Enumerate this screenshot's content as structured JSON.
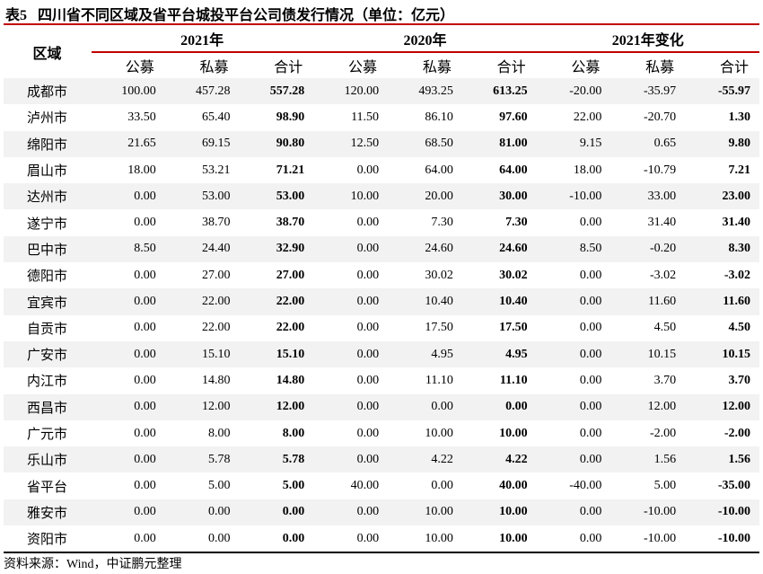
{
  "title": {
    "number": "表5",
    "text": "四川省不同区域及省平台城投平台公司债发行情况（单位：亿元）"
  },
  "header": {
    "region": "区域",
    "groups": [
      "2021年",
      "2020年",
      "2021年变化"
    ],
    "subcolumns": [
      "公募",
      "私募",
      "合计",
      "公募",
      "私募",
      "合计",
      "公募",
      "私募",
      "合计"
    ]
  },
  "rows": [
    {
      "name": "成都市",
      "values": [
        "100.00",
        "457.28",
        "557.28",
        "120.00",
        "493.25",
        "613.25",
        "-20.00",
        "-35.97",
        "-55.97"
      ]
    },
    {
      "name": "泸州市",
      "values": [
        "33.50",
        "65.40",
        "98.90",
        "11.50",
        "86.10",
        "97.60",
        "22.00",
        "-20.70",
        "1.30"
      ]
    },
    {
      "name": "绵阳市",
      "values": [
        "21.65",
        "69.15",
        "90.80",
        "12.50",
        "68.50",
        "81.00",
        "9.15",
        "0.65",
        "9.80"
      ]
    },
    {
      "name": "眉山市",
      "values": [
        "18.00",
        "53.21",
        "71.21",
        "0.00",
        "64.00",
        "64.00",
        "18.00",
        "-10.79",
        "7.21"
      ]
    },
    {
      "name": "达州市",
      "values": [
        "0.00",
        "53.00",
        "53.00",
        "10.00",
        "20.00",
        "30.00",
        "-10.00",
        "33.00",
        "23.00"
      ]
    },
    {
      "name": "遂宁市",
      "values": [
        "0.00",
        "38.70",
        "38.70",
        "0.00",
        "7.30",
        "7.30",
        "0.00",
        "31.40",
        "31.40"
      ]
    },
    {
      "name": "巴中市",
      "values": [
        "8.50",
        "24.40",
        "32.90",
        "0.00",
        "24.60",
        "24.60",
        "8.50",
        "-0.20",
        "8.30"
      ]
    },
    {
      "name": "德阳市",
      "values": [
        "0.00",
        "27.00",
        "27.00",
        "0.00",
        "30.02",
        "30.02",
        "0.00",
        "-3.02",
        "-3.02"
      ]
    },
    {
      "name": "宜宾市",
      "values": [
        "0.00",
        "22.00",
        "22.00",
        "0.00",
        "10.40",
        "10.40",
        "0.00",
        "11.60",
        "11.60"
      ]
    },
    {
      "name": "自贡市",
      "values": [
        "0.00",
        "22.00",
        "22.00",
        "0.00",
        "17.50",
        "17.50",
        "0.00",
        "4.50",
        "4.50"
      ]
    },
    {
      "name": "广安市",
      "values": [
        "0.00",
        "15.10",
        "15.10",
        "0.00",
        "4.95",
        "4.95",
        "0.00",
        "10.15",
        "10.15"
      ]
    },
    {
      "name": "内江市",
      "values": [
        "0.00",
        "14.80",
        "14.80",
        "0.00",
        "11.10",
        "11.10",
        "0.00",
        "3.70",
        "3.70"
      ]
    },
    {
      "name": "西昌市",
      "values": [
        "0.00",
        "12.00",
        "12.00",
        "0.00",
        "0.00",
        "0.00",
        "0.00",
        "12.00",
        "12.00"
      ]
    },
    {
      "name": "广元市",
      "values": [
        "0.00",
        "8.00",
        "8.00",
        "0.00",
        "10.00",
        "10.00",
        "0.00",
        "-2.00",
        "-2.00"
      ]
    },
    {
      "name": "乐山市",
      "values": [
        "0.00",
        "5.78",
        "5.78",
        "0.00",
        "4.22",
        "4.22",
        "0.00",
        "1.56",
        "1.56"
      ]
    },
    {
      "name": "省平台",
      "values": [
        "0.00",
        "5.00",
        "5.00",
        "40.00",
        "0.00",
        "40.00",
        "-40.00",
        "5.00",
        "-35.00"
      ]
    },
    {
      "name": "雅安市",
      "values": [
        "0.00",
        "0.00",
        "0.00",
        "0.00",
        "10.00",
        "10.00",
        "0.00",
        "-10.00",
        "-10.00"
      ]
    },
    {
      "name": "资阳市",
      "values": [
        "0.00",
        "0.00",
        "0.00",
        "0.00",
        "10.00",
        "10.00",
        "0.00",
        "-10.00",
        "-10.00"
      ]
    }
  ],
  "source": "资料来源：Wind，中证鹏元整理",
  "colors": {
    "rule": "#c00000",
    "shade": "#f2f2f2"
  }
}
